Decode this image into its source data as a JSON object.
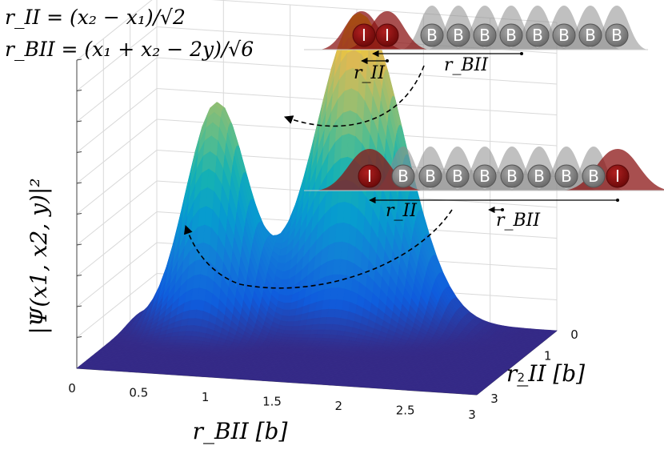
{
  "chart_data": {
    "type": "surface",
    "zlabel": "|Ψ(x1, x2, y)|²",
    "xlabel": "r_BII [b]",
    "ylabel": "r_II [b]",
    "x_ticks": [
      "0",
      "0.5",
      "1",
      "1.5",
      "2",
      "2.5",
      "3"
    ],
    "y_ticks": [
      "0",
      "1",
      "2",
      "3"
    ],
    "xlim": [
      0,
      3
    ],
    "ylim": [
      0,
      3
    ],
    "grid": true,
    "colormap": "parula",
    "peaks": [
      {
        "r_BII": 0.6,
        "r_II": 0.75,
        "height": 0.72
      },
      {
        "r_BII": 1.55,
        "r_II": 0.15,
        "height": 1.0
      }
    ],
    "colors": {
      "bath": "#9a9a9a",
      "impurity": "#8b1414",
      "impurity_cloud": "#a83b3b"
    }
  },
  "equations": {
    "r_II": "r_II = (x₂ − x₁)/√2",
    "r_BII": "r_BII = (x₁ + x₂ − 2y)/√6"
  },
  "schematic_top": {
    "impurity_labels": [
      "I",
      "I"
    ],
    "bath_labels": [
      "B",
      "B",
      "B",
      "B",
      "B",
      "B",
      "B",
      "B"
    ],
    "arrow_label_small": "r_II",
    "arrow_label_long": "r_BII"
  },
  "schematic_bottom": {
    "labels": [
      "I",
      "B",
      "B",
      "B",
      "B",
      "B",
      "B",
      "B",
      "B",
      "I"
    ],
    "arrow_label_long": "r_II",
    "arrow_label_short": "r_BII"
  }
}
